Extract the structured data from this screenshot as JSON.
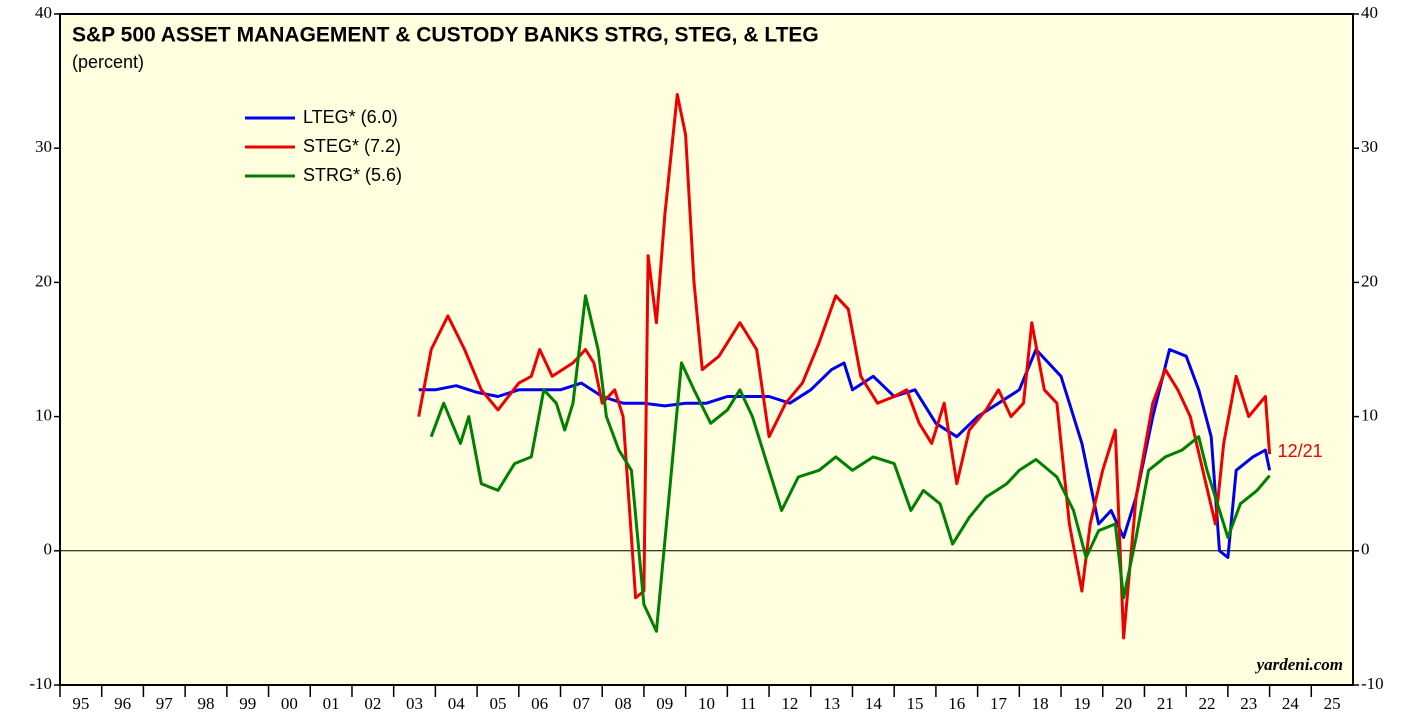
{
  "chart_data": {
    "type": "line",
    "title": "S&P 500 ASSET MANAGEMENT & CUSTODY BANKS STRG, STEG, & LTEG",
    "subtitle": "(percent)",
    "annotation": "12/21",
    "source": "yardeni.com",
    "xlim": [
      1995,
      2026
    ],
    "xticks": [
      {
        "value": 1995,
        "label": "95"
      },
      {
        "value": 1996,
        "label": "96"
      },
      {
        "value": 1997,
        "label": "97"
      },
      {
        "value": 1998,
        "label": "98"
      },
      {
        "value": 1999,
        "label": "99"
      },
      {
        "value": 2000,
        "label": "00"
      },
      {
        "value": 2001,
        "label": "01"
      },
      {
        "value": 2002,
        "label": "02"
      },
      {
        "value": 2003,
        "label": "03"
      },
      {
        "value": 2004,
        "label": "04"
      },
      {
        "value": 2005,
        "label": "05"
      },
      {
        "value": 2006,
        "label": "06"
      },
      {
        "value": 2007,
        "label": "07"
      },
      {
        "value": 2008,
        "label": "08"
      },
      {
        "value": 2009,
        "label": "09"
      },
      {
        "value": 2010,
        "label": "10"
      },
      {
        "value": 2011,
        "label": "11"
      },
      {
        "value": 2012,
        "label": "12"
      },
      {
        "value": 2013,
        "label": "13"
      },
      {
        "value": 2014,
        "label": "14"
      },
      {
        "value": 2015,
        "label": "15"
      },
      {
        "value": 2016,
        "label": "16"
      },
      {
        "value": 2017,
        "label": "17"
      },
      {
        "value": 2018,
        "label": "18"
      },
      {
        "value": 2019,
        "label": "19"
      },
      {
        "value": 2020,
        "label": "20"
      },
      {
        "value": 2021,
        "label": "21"
      },
      {
        "value": 2022,
        "label": "22"
      },
      {
        "value": 2023,
        "label": "23"
      },
      {
        "value": 2024,
        "label": "24"
      },
      {
        "value": 2025,
        "label": "25"
      }
    ],
    "ylim": [
      -10,
      40
    ],
    "yticks": [
      -10,
      0,
      10,
      20,
      30,
      40
    ],
    "zero_line": true,
    "series": [
      {
        "name": "LTEG* (6.0)",
        "color": "#0000ee",
        "x": [
          2003.6,
          2004.0,
          2004.5,
          2005.0,
          2005.5,
          2006.0,
          2006.5,
          2007.0,
          2007.5,
          2008.0,
          2008.5,
          2009.0,
          2009.5,
          2010.0,
          2010.5,
          2011.0,
          2011.5,
          2012.0,
          2012.5,
          2013.0,
          2013.5,
          2013.8,
          2014.0,
          2014.5,
          2015.0,
          2015.5,
          2016.0,
          2016.5,
          2017.0,
          2017.5,
          2018.0,
          2018.4,
          2019.0,
          2019.2,
          2019.5,
          2019.9,
          2020.2,
          2020.5,
          2020.8,
          2021.2,
          2021.6,
          2022.0,
          2022.3,
          2022.6,
          2022.8,
          2023.0,
          2023.2,
          2023.6,
          2023.9,
          2024.0
        ],
        "values": [
          12,
          12,
          12.3,
          11.8,
          11.5,
          12,
          12,
          12,
          12.5,
          11.5,
          11,
          11,
          10.8,
          11,
          11,
          11.5,
          11.5,
          11.5,
          11,
          12,
          13.5,
          14,
          12,
          13,
          11.5,
          12,
          9.5,
          8.5,
          10,
          11,
          12,
          15,
          13,
          11,
          8,
          2,
          3,
          1,
          4,
          10,
          15,
          14.5,
          12,
          8.5,
          0,
          -0.5,
          6,
          7,
          7.5,
          6
        ]
      },
      {
        "name": "STEG* (7.2)",
        "color": "#ee0000",
        "x": [
          2003.6,
          2003.9,
          2004.3,
          2004.7,
          2005.1,
          2005.5,
          2006.0,
          2006.3,
          2006.5,
          2006.8,
          2007.3,
          2007.6,
          2007.8,
          2008.0,
          2008.3,
          2008.5,
          2008.8,
          2009.0,
          2009.1,
          2009.3,
          2009.5,
          2009.8,
          2010.0,
          2010.2,
          2010.4,
          2010.8,
          2011.3,
          2011.7,
          2012.0,
          2012.4,
          2012.8,
          2013.2,
          2013.6,
          2013.9,
          2014.2,
          2014.6,
          2015.0,
          2015.3,
          2015.6,
          2015.9,
          2016.2,
          2016.5,
          2016.8,
          2017.2,
          2017.5,
          2017.8,
          2018.1,
          2018.3,
          2018.6,
          2018.9,
          2019.2,
          2019.5,
          2019.7,
          2020.0,
          2020.3,
          2020.5,
          2020.8,
          2021.2,
          2021.5,
          2021.8,
          2022.1,
          2022.4,
          2022.7,
          2022.9,
          2023.2,
          2023.5,
          2023.9,
          2024.0
        ],
        "values": [
          10,
          15,
          17.5,
          15,
          12,
          10.5,
          12.5,
          13,
          15,
          13,
          14,
          15,
          14,
          11,
          12,
          10,
          -3.5,
          -3,
          22,
          17,
          25,
          34,
          31,
          20,
          13.5,
          14.5,
          17,
          15,
          8.5,
          11,
          12.5,
          15.5,
          19,
          18,
          13,
          11,
          11.5,
          12,
          9.5,
          8,
          11,
          5,
          9,
          10.5,
          12,
          10,
          11,
          17,
          12,
          11,
          2,
          -3,
          2,
          6,
          9,
          -6.5,
          4,
          11,
          13.5,
          12,
          10,
          6,
          2,
          8,
          13,
          10,
          11.5,
          7.2
        ]
      },
      {
        "name": "STRG* (5.6)",
        "color": "#008000",
        "x": [
          2003.9,
          2004.2,
          2004.6,
          2004.8,
          2005.1,
          2005.5,
          2005.9,
          2006.3,
          2006.6,
          2006.9,
          2007.1,
          2007.3,
          2007.6,
          2007.9,
          2008.1,
          2008.4,
          2008.7,
          2009.0,
          2009.3,
          2009.6,
          2009.9,
          2010.2,
          2010.6,
          2011.0,
          2011.3,
          2011.6,
          2012.0,
          2012.3,
          2012.7,
          2013.2,
          2013.6,
          2014.0,
          2014.5,
          2015.0,
          2015.4,
          2015.7,
          2016.1,
          2016.4,
          2016.8,
          2017.2,
          2017.7,
          2018.0,
          2018.4,
          2018.9,
          2019.3,
          2019.6,
          2019.9,
          2020.3,
          2020.5,
          2020.8,
          2021.1,
          2021.5,
          2021.9,
          2022.3,
          2022.5,
          2022.8,
          2023.0,
          2023.3,
          2023.7,
          2024.0
        ],
        "values": [
          8.5,
          11,
          8,
          10,
          5,
          4.5,
          6.5,
          7,
          12,
          11,
          9,
          11,
          19,
          15,
          10,
          7.5,
          6,
          -4,
          -6,
          4,
          14,
          12,
          9.5,
          10.5,
          12,
          10,
          6,
          3,
          5.5,
          6,
          7,
          6,
          7,
          6.5,
          3,
          4.5,
          3.5,
          0.5,
          2.5,
          4,
          5,
          6,
          6.8,
          5.5,
          3,
          -0.5,
          1.5,
          2,
          -3.5,
          1,
          6,
          7,
          7.5,
          8.5,
          6,
          3,
          1,
          3.5,
          4.5,
          5.6
        ]
      }
    ]
  }
}
